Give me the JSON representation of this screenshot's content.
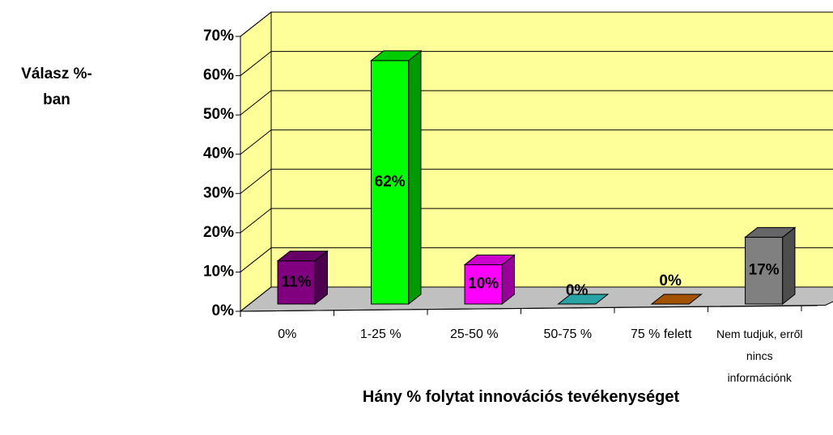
{
  "chart_data": {
    "type": "bar3d",
    "y_label": "Válasz %-ban",
    "x_label": "Hány % folytat innovációs tevékenységet",
    "categories": [
      "0%",
      "1-25 %",
      "25-50 %",
      "50-75 %",
      "75 % felett",
      "Nem tudjuk, erről nincs információnk"
    ],
    "values": [
      11,
      62,
      10,
      0,
      0,
      17
    ],
    "value_labels": [
      "11%",
      "62%",
      "10%",
      "0%",
      "0%",
      "17%"
    ],
    "colors": [
      "#800080",
      "#00ff00",
      "#ff00ff",
      "#33cccc",
      "#cc6600",
      "#808080"
    ],
    "ylim": [
      0,
      70
    ],
    "yticks": [
      {
        "value": 0,
        "label": "0%"
      },
      {
        "value": 10,
        "label": "10%"
      },
      {
        "value": 20,
        "label": "20%"
      },
      {
        "value": 30,
        "label": "30%"
      },
      {
        "value": 40,
        "label": "40%"
      },
      {
        "value": 50,
        "label": "50%"
      },
      {
        "value": 60,
        "label": "60%"
      },
      {
        "value": 70,
        "label": "70%"
      }
    ],
    "grid": true
  }
}
